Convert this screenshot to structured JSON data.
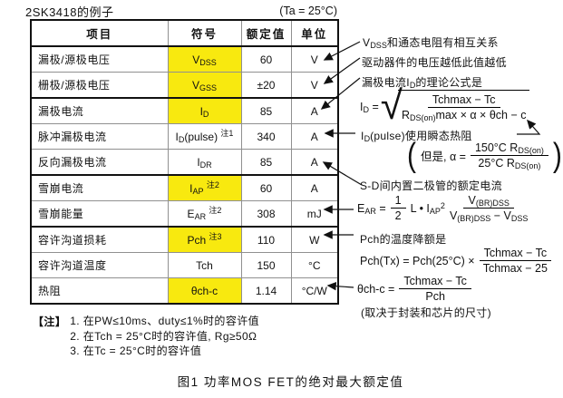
{
  "header": {
    "title": "2SK3418的例子",
    "condition": "(Ta = 25°C)"
  },
  "colors": {
    "highlight": "#f8e90f",
    "border_gray": "#909090",
    "ink": "#111111"
  },
  "table": {
    "columns": [
      "项目",
      "符号",
      "额定值",
      "单位"
    ],
    "rows": [
      {
        "item": "漏极/源极电压",
        "sym": {
          "pre": "V",
          "sub": "DSS",
          "post": "",
          "note": ""
        },
        "value": "60",
        "unit": "V",
        "highlight": true,
        "group_end": false
      },
      {
        "item": "栅极/源极电压",
        "sym": {
          "pre": "V",
          "sub": "GSS",
          "post": "",
          "note": ""
        },
        "value": "±20",
        "unit": "V",
        "highlight": true,
        "group_end": true
      },
      {
        "item": "漏极电流",
        "sym": {
          "pre": "I",
          "sub": "D",
          "post": "",
          "note": ""
        },
        "value": "85",
        "unit": "A",
        "highlight": true,
        "group_end": false
      },
      {
        "item": "脉冲漏极电流",
        "sym": {
          "pre": "I",
          "sub": "D",
          "post": "(pulse)",
          "note": "注1"
        },
        "value": "340",
        "unit": "A",
        "highlight": false,
        "group_end": false
      },
      {
        "item": "反向漏极电流",
        "sym": {
          "pre": "I",
          "sub": "DR",
          "post": "",
          "note": ""
        },
        "value": "85",
        "unit": "A",
        "highlight": false,
        "group_end": true
      },
      {
        "item": "雪崩电流",
        "sym": {
          "pre": "I",
          "sub": "AP",
          "post": "",
          "note": "注2"
        },
        "value": "60",
        "unit": "A",
        "highlight": true,
        "group_end": false
      },
      {
        "item": "雪崩能量",
        "sym": {
          "pre": "E",
          "sub": "AR",
          "post": "",
          "note": "注2"
        },
        "value": "308",
        "unit": "mJ",
        "highlight": false,
        "group_end": true
      },
      {
        "item": "容许沟道损耗",
        "sym": {
          "pre": "Pch",
          "sub": "",
          "post": "",
          "note": "注3"
        },
        "value": "110",
        "unit": "W",
        "highlight": true,
        "group_end": false
      },
      {
        "item": "容许沟道温度",
        "sym": {
          "pre": "Tch",
          "sub": "",
          "post": "",
          "note": ""
        },
        "value": "150",
        "unit": "°C",
        "highlight": false,
        "group_end": false
      },
      {
        "item": "热阻",
        "sym": {
          "pre": "θch-c",
          "sub": "",
          "post": "",
          "note": ""
        },
        "value": "1.14",
        "unit": "°C/W",
        "highlight": true,
        "group_end": false
      }
    ]
  },
  "annotations": {
    "vdss": {
      "pre": "V",
      "sub": "DSS",
      "text": "和通态电阻有相互关系"
    },
    "drive": "驱动器件的电压越低此值越低",
    "id_intro": {
      "pre": "漏极电流I",
      "sub": "D",
      "text": "的理论公式是"
    },
    "id_pulse": {
      "pre": "I",
      "sub": "D",
      "text": "(pulse)使用瞬态热阻"
    },
    "sd_diode": "S-D间内置二极管的额定电流",
    "pch_derate": "Pch的温度降额是",
    "package_note": "(取决于封装和芯片的尺寸)"
  },
  "formulas": {
    "id": {
      "lhs_pre": "I",
      "lhs_sub": "D",
      "eq": "=",
      "num": "Tchmax − Tc",
      "den_pre": "R",
      "den_sub": "DS(on)",
      "den_post": "max × α × θch − c"
    },
    "alpha": {
      "open": "(",
      "prefix": "但是, α =",
      "num_pre": "150°C R",
      "num_sub": "DS(on)",
      "den_pre": "25°C R",
      "den_sub": "DS(on)",
      "close": ")"
    },
    "ear": {
      "lhs_pre": "E",
      "lhs_sub": "AR",
      "eq": "=",
      "half_num": "1",
      "half_den": "2",
      "mid_pre": "L • I",
      "mid_sub": "AP",
      "mid_sup": "2",
      "num_pre": "V",
      "num_sub": "(BR)DSS",
      "den_pre": "V",
      "den_sub": "(BR)DSS",
      "den_mid": " − V",
      "den_sub2": "DSS"
    },
    "pch": {
      "lhs": "Pch(Tx) = Pch(25°C) ×",
      "num": "Tchmax − Tc",
      "den": "Tchmax − 25"
    },
    "theta": {
      "lhs": "θch-c =",
      "num": "Tchmax − Tc",
      "den": "Pch"
    }
  },
  "notes": {
    "label": "【注】",
    "items": [
      "1. 在PW≤10ms、duty≤1%时的容许值",
      "2. 在Tch = 25°C时的容许值, Rg≥50Ω",
      "3. 在Tc = 25°C时的容许值"
    ]
  },
  "caption": "图1  功率MOS FET的绝对最大额定值"
}
